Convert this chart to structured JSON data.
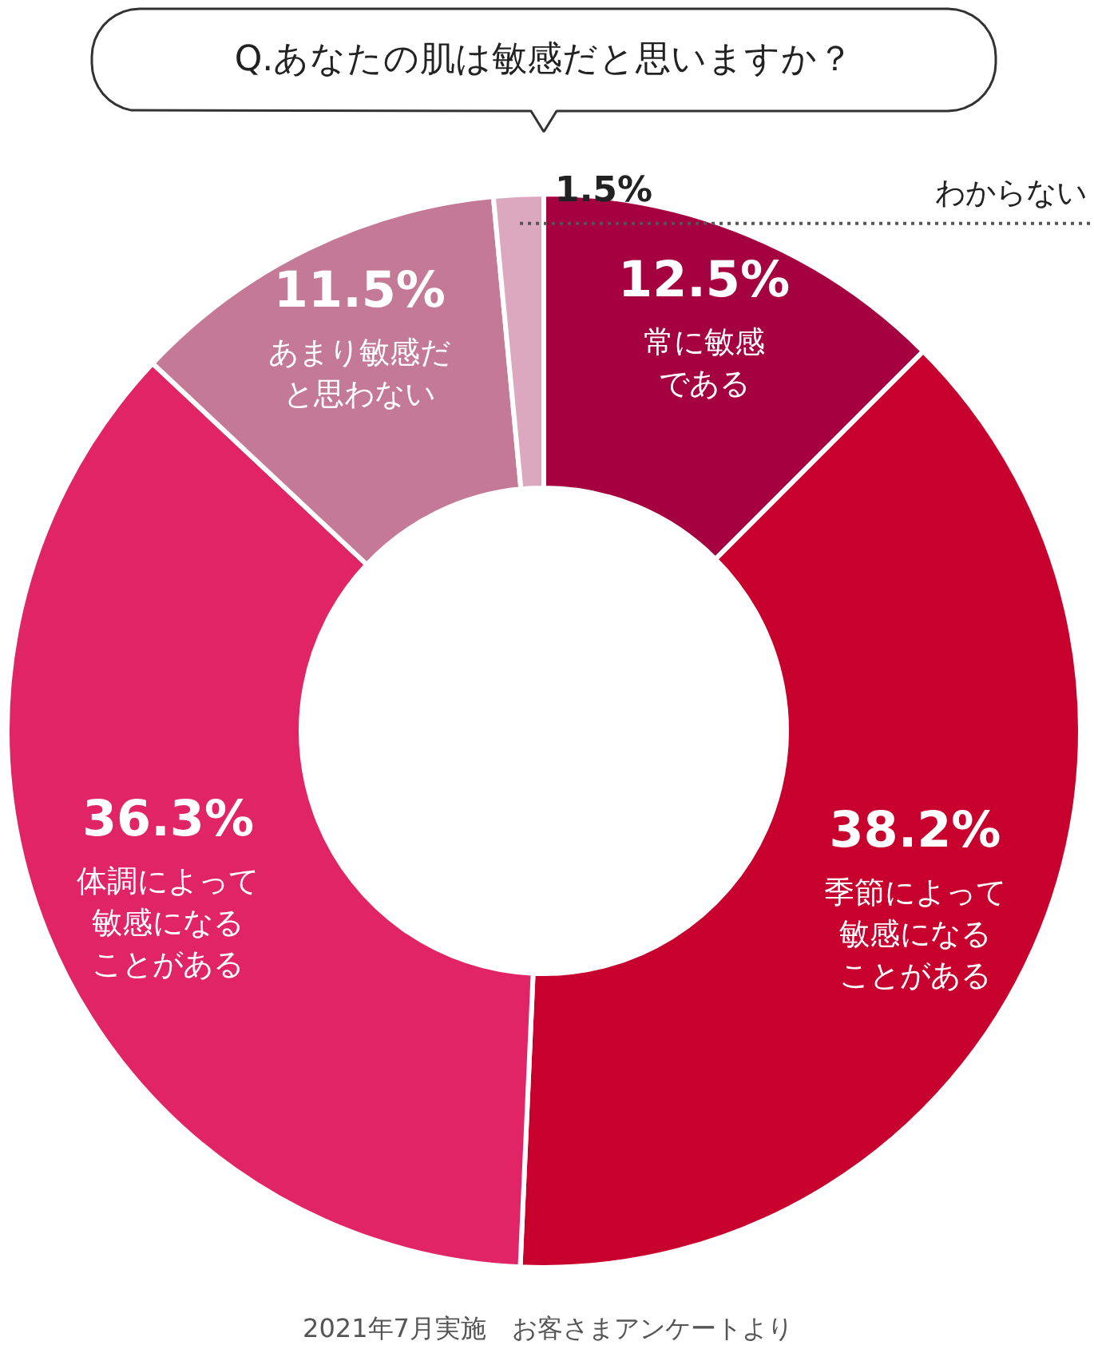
{
  "chart_data": {
    "type": "donut",
    "title": "Q.あなたの肌は敏感だと思いますか？",
    "categories": [
      "常に敏感である",
      "季節によって敏感になることがある",
      "体調によって敏感になることがある",
      "あまり敏感だと思わない",
      "わからない"
    ],
    "values": [
      12.5,
      38.2,
      36.3,
      11.5,
      1.5
    ],
    "value_labels": [
      "12.5%",
      "38.2%",
      "36.3%",
      "11.5%",
      "1.5%"
    ],
    "colors": [
      "#a50040",
      "#c8002d",
      "#e02465",
      "#c47a97",
      "#dba8bf"
    ],
    "annotations": [
      "2021年7月実施　お客さまアンケートより"
    ]
  }
}
